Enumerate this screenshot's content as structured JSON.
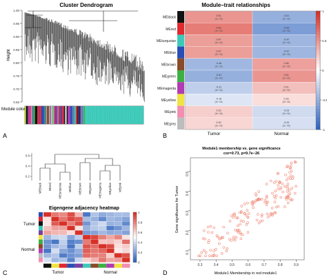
{
  "panels": {
    "A": {
      "label": "A",
      "title": "Cluster Dendrogram",
      "ylabel": "Height",
      "yticks": [
        "1.00",
        "0.95",
        "0.90",
        "0.85",
        "0.80",
        "0.75",
        "0.70",
        "0.65"
      ],
      "module_colors_label": "Module colors"
    },
    "B": {
      "label": "B",
      "title": "Module–trait relationships",
      "columns": [
        "Tumor",
        "Normal"
      ],
      "colorbar_ticks": [
        "1",
        "0.5",
        "0",
        "-0.5",
        "-1"
      ]
    },
    "C": {
      "label": "C",
      "dendro_yticks": [
        "0.8",
        "0.4",
        "0.2"
      ],
      "dendro_leaves": [
        "MEblack",
        "MEred",
        "MEturquoise",
        "MEblue",
        "MEbrown",
        "MEgreen",
        "MEmagenta",
        "MEyellow",
        "MEpink"
      ],
      "heatmap_title": "Eigengene adjacency heatmap",
      "row_labels": [
        "Tumor",
        "Normal"
      ],
      "col_labels": [
        "Tumor",
        "Normal"
      ],
      "colorbar_ticks": [
        "1",
        "0.8",
        "0.6",
        "0.4",
        "0.2",
        "0"
      ]
    },
    "D": {
      "label": "D",
      "title_line1": "Module1 membership vs. gene significance",
      "title_line2": "cor=0.73, p=9.7e−26",
      "xlabel": "Module1 Membership in red module1",
      "ylabel": "Gene significance for Tumor",
      "xticks": [
        "0.3",
        "0.4",
        "0.5",
        "0.6",
        "0.7",
        "0.8",
        "0.9"
      ],
      "yticks": [
        "0.1",
        "0.2",
        "0.3",
        "0.4",
        "0.5"
      ]
    }
  },
  "chart_data": [
    {
      "type": "heatmap",
      "title": "Module–trait relationships",
      "rows": [
        {
          "name": "MEblack",
          "color": "#111111",
          "values": [
            0.51,
            -0.51
          ]
        },
        {
          "name": "MEred",
          "color": "#e0282e",
          "values": [
            0.63,
            -0.63
          ]
        },
        {
          "name": "MEturquoise",
          "color": "#3cc9b8",
          "values": [
            0.47,
            -0.47
          ]
        },
        {
          "name": "MEblue",
          "color": "#2a4db5",
          "values": [
            0.47,
            -0.47
          ]
        },
        {
          "name": "MEbrown",
          "color": "#8a4b2a",
          "values": [
            -0.46,
            0.46
          ]
        },
        {
          "name": "MEgreen",
          "color": "#3cb043",
          "values": [
            -0.51,
            0.51
          ]
        },
        {
          "name": "MEmagenta",
          "color": "#b23bb3",
          "values": [
            -0.31,
            0.31
          ]
        },
        {
          "name": "MEyellow",
          "color": "#f0e442",
          "values": [
            -0.16,
            0.16
          ]
        },
        {
          "name": "MEpink",
          "color": "#f28fb1",
          "values": [
            0.23,
            -0.23
          ]
        },
        {
          "name": "MEgrey",
          "color": "#bdbdbd",
          "values": [
            0.2,
            -0.2
          ]
        }
      ],
      "columns": [
        "Tumor",
        "Normal"
      ],
      "colorbar": [
        -1,
        1
      ]
    },
    {
      "type": "scatter",
      "title": "Module1 membership vs. gene significance",
      "xlabel": "Module1 Membership in red module1",
      "ylabel": "Gene significance for Tumor",
      "xlim": [
        0.24,
        0.95
      ],
      "ylim": [
        0.05,
        0.57
      ],
      "cor": 0.73,
      "point_color": "#f08a78"
    }
  ]
}
